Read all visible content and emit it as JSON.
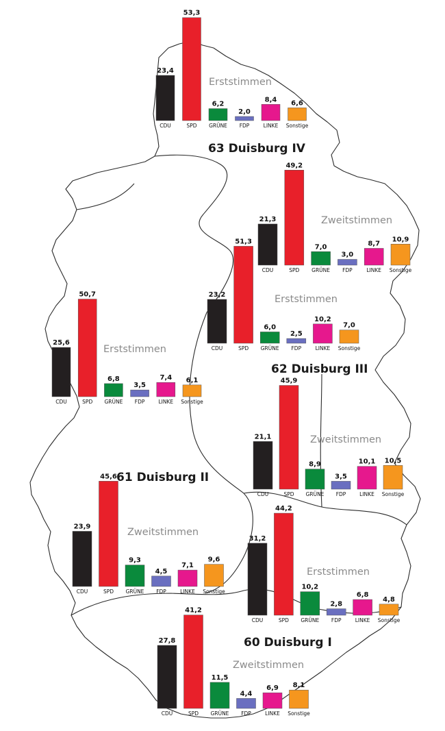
{
  "colors": {
    "CDU": "#231f20",
    "SPD": "#e8202a",
    "GRÜNE": "#0a8a3c",
    "FDP": "#6a6fc0",
    "LINKE": "#e6188d",
    "Sonstige": "#f5961e"
  },
  "districts": [
    {
      "id": "d63",
      "label": "63 Duisburg IV"
    },
    {
      "id": "d62",
      "label": "62 Duisburg III"
    },
    {
      "id": "d61",
      "label": "61 Duisburg II"
    },
    {
      "id": "d60",
      "label": "60 Duisburg I"
    }
  ],
  "chart_data": [
    {
      "type": "bar",
      "district": "63 Duisburg IV",
      "title": "Erststimmen",
      "categories": [
        "CDU",
        "SPD",
        "GRÜNE",
        "FDP",
        "LINKE",
        "Sonstige"
      ],
      "values": [
        23.4,
        53.3,
        6.2,
        2.0,
        8.4,
        6.6
      ],
      "value_labels": [
        "23,4",
        "53,3",
        "6,2",
        "2,0",
        "8,4",
        "6,6"
      ]
    },
    {
      "type": "bar",
      "district": "63 Duisburg IV",
      "title": "Zweitstimmen",
      "categories": [
        "CDU",
        "SPD",
        "GRÜNE",
        "FDP",
        "LINKE",
        "Sonstige"
      ],
      "values": [
        21.3,
        49.2,
        7.0,
        3.0,
        8.7,
        10.9
      ],
      "value_labels": [
        "21,3",
        "49,2",
        "7,0",
        "3,0",
        "8,7",
        "10,9"
      ]
    },
    {
      "type": "bar",
      "district": "62 Duisburg III",
      "title": "Erststimmen",
      "categories": [
        "CDU",
        "SPD",
        "GRÜNE",
        "FDP",
        "LINKE",
        "Sonstige"
      ],
      "values": [
        23.2,
        51.3,
        6.0,
        2.5,
        10.2,
        7.0
      ],
      "value_labels": [
        "23,2",
        "51,3",
        "6,0",
        "2,5",
        "10,2",
        "7,0"
      ]
    },
    {
      "type": "bar",
      "district": "62 Duisburg III",
      "title": "Zweitstimmen",
      "categories": [
        "CDU",
        "SPD",
        "GRÜNE",
        "FDP",
        "LINKE",
        "Sonstige"
      ],
      "values": [
        21.1,
        45.9,
        8.9,
        3.5,
        10.1,
        10.5
      ],
      "value_labels": [
        "21,1",
        "45,9",
        "8,9",
        "3,5",
        "10,1",
        "10,5"
      ]
    },
    {
      "type": "bar",
      "district": "61 Duisburg II",
      "title": "Erststimmen",
      "categories": [
        "CDU",
        "SPD",
        "GRÜNE",
        "FDP",
        "LINKE",
        "Sonstige"
      ],
      "values": [
        25.6,
        50.7,
        6.8,
        3.5,
        7.4,
        6.1
      ],
      "value_labels": [
        "25,6",
        "50,7",
        "6,8",
        "3,5",
        "7,4",
        "6,1"
      ]
    },
    {
      "type": "bar",
      "district": "61 Duisburg II",
      "title": "Zweitstimmen",
      "categories": [
        "CDU",
        "SPD",
        "GRÜNE",
        "FDP",
        "LINKE",
        "Sonstige"
      ],
      "values": [
        23.9,
        45.6,
        9.3,
        4.5,
        7.1,
        9.6
      ],
      "value_labels": [
        "23,9",
        "45,6",
        "9,3",
        "4,5",
        "7,1",
        "9,6"
      ]
    },
    {
      "type": "bar",
      "district": "60 Duisburg I",
      "title": "Erststimmen",
      "categories": [
        "CDU",
        "SPD",
        "GRÜNE",
        "FDP",
        "LINKE",
        "Sonstige"
      ],
      "values": [
        31.2,
        44.2,
        10.2,
        2.8,
        6.8,
        4.8
      ],
      "value_labels": [
        "31,2",
        "44,2",
        "10,2",
        "2,8",
        "6,8",
        "4,8"
      ]
    },
    {
      "type": "bar",
      "district": "60 Duisburg I",
      "title": "Zweitstimmen",
      "categories": [
        "CDU",
        "SPD",
        "GRÜNE",
        "FDP",
        "LINKE",
        "Sonstige"
      ],
      "values": [
        27.8,
        41.2,
        11.5,
        4.4,
        6.9,
        8.1
      ],
      "value_labels": [
        "27,8",
        "41,2",
        "11,5",
        "4,4",
        "6,9",
        "8,1"
      ]
    }
  ]
}
